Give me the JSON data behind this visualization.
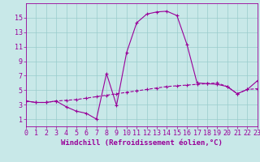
{
  "x": [
    0,
    1,
    2,
    3,
    4,
    5,
    6,
    7,
    8,
    9,
    10,
    11,
    12,
    13,
    14,
    15,
    16,
    17,
    18,
    19,
    20,
    21,
    22,
    23
  ],
  "temperature": [
    3.5,
    3.3,
    3.3,
    3.5,
    2.7,
    2.1,
    1.8,
    1.0,
    7.3,
    2.9,
    10.2,
    14.3,
    15.5,
    15.8,
    15.9,
    15.3,
    11.3,
    6.0,
    5.9,
    5.8,
    5.5,
    4.5,
    5.1,
    6.3
  ],
  "windchill": [
    3.5,
    3.3,
    3.3,
    3.5,
    3.6,
    3.7,
    3.9,
    4.1,
    4.3,
    4.5,
    4.7,
    4.9,
    5.1,
    5.3,
    5.5,
    5.6,
    5.7,
    5.8,
    5.9,
    6.0,
    5.5,
    4.5,
    5.1,
    5.2
  ],
  "line_color": "#990099",
  "bg_color": "#c8e8e8",
  "grid_color": "#99cccc",
  "xlim": [
    0,
    23
  ],
  "ylim": [
    0,
    17
  ],
  "yticks": [
    1,
    3,
    5,
    7,
    9,
    11,
    13,
    15
  ],
  "xticks": [
    0,
    1,
    2,
    3,
    4,
    5,
    6,
    7,
    8,
    9,
    10,
    11,
    12,
    13,
    14,
    15,
    16,
    17,
    18,
    19,
    20,
    21,
    22,
    23
  ],
  "xlabel": "Windchill (Refroidissement éolien,°C)",
  "xlabel_fontsize": 6.5,
  "tick_fontsize": 6.0,
  "fig_width": 3.2,
  "fig_height": 2.0,
  "dpi": 100
}
